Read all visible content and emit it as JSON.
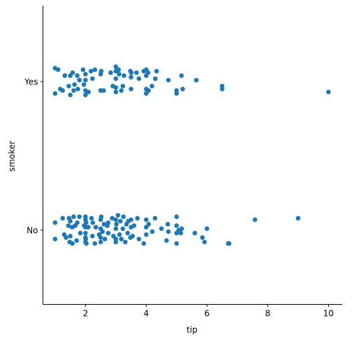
{
  "chart_data": {
    "type": "scatter",
    "title": "",
    "xlabel": "tip",
    "ylabel": "smoker",
    "categories": [
      "Yes",
      "No"
    ],
    "xlim": [
      0.6,
      10.45
    ],
    "xticks": [
      "2",
      "4",
      "6",
      "8",
      "10"
    ],
    "grid": false,
    "legend": "none",
    "color": "#1f77b4",
    "series": [
      {
        "category": "Yes",
        "points": [
          [
            1.0,
            0.09
          ],
          [
            1.0,
            -0.08
          ],
          [
            1.1,
            0.08
          ],
          [
            1.17,
            -0.05
          ],
          [
            1.25,
            -0.06
          ],
          [
            1.32,
            0.04
          ],
          [
            1.45,
            -0.03
          ],
          [
            1.5,
            -0.09
          ],
          [
            1.5,
            0.04
          ],
          [
            1.58,
            0.06
          ],
          [
            1.61,
            -0.06
          ],
          [
            1.64,
            -0.02
          ],
          [
            1.73,
            0.04
          ],
          [
            1.75,
            -0.05
          ],
          [
            1.8,
            0.01
          ],
          [
            1.92,
            0.08
          ],
          [
            1.95,
            -0.02
          ],
          [
            2.0,
            -0.06
          ],
          [
            2.0,
            0.01
          ],
          [
            2.0,
            0.05
          ],
          [
            2.0,
            -0.09
          ],
          [
            2.1,
            -0.07
          ],
          [
            2.18,
            0.07
          ],
          [
            2.23,
            0.02
          ],
          [
            2.31,
            0.08
          ],
          [
            2.5,
            -0.06
          ],
          [
            2.5,
            0.05
          ],
          [
            2.5,
            -0.06
          ],
          [
            2.52,
            0.07
          ],
          [
            2.6,
            -0.06
          ],
          [
            2.83,
            0.06
          ],
          [
            2.9,
            -0.03
          ],
          [
            3.0,
            0.07
          ],
          [
            3.0,
            -0.07
          ],
          [
            3.0,
            0.1
          ],
          [
            3.0,
            -0.04
          ],
          [
            3.0,
            0.02
          ],
          [
            3.09,
            0.08
          ],
          [
            3.11,
            0.05
          ],
          [
            3.18,
            -0.06
          ],
          [
            3.23,
            -0.03
          ],
          [
            3.27,
            0.04
          ],
          [
            3.48,
            0.07
          ],
          [
            3.5,
            0.03
          ],
          [
            3.5,
            -0.05
          ],
          [
            3.51,
            0.06
          ],
          [
            3.68,
            0.06
          ],
          [
            3.76,
            0.02
          ],
          [
            3.92,
            0.07
          ],
          [
            4.0,
            -0.05
          ],
          [
            4.0,
            0.08
          ],
          [
            4.0,
            0.04
          ],
          [
            4.0,
            -0.08
          ],
          [
            4.06,
            0.06
          ],
          [
            4.08,
            -0.06
          ],
          [
            4.19,
            -0.03
          ],
          [
            4.3,
            0.02
          ],
          [
            4.34,
            0.07
          ],
          [
            4.73,
            0.01
          ],
          [
            5.0,
            -0.06
          ],
          [
            5.0,
            -0.08
          ],
          [
            5.16,
            0.04
          ],
          [
            5.2,
            -0.05
          ],
          [
            5.65,
            0.01
          ],
          [
            6.5,
            -0.03
          ],
          [
            6.5,
            -0.05
          ],
          [
            10.0,
            -0.07
          ]
        ]
      },
      {
        "category": "No",
        "points": [
          [
            1.0,
            0.05
          ],
          [
            1.0,
            -0.06
          ],
          [
            1.25,
            0.08
          ],
          [
            1.3,
            -0.03
          ],
          [
            1.36,
            -0.05
          ],
          [
            1.44,
            0.03
          ],
          [
            1.46,
            0.08
          ],
          [
            1.48,
            -0.08
          ],
          [
            1.5,
            -0.04
          ],
          [
            1.5,
            0.06
          ],
          [
            1.56,
            0.02
          ],
          [
            1.57,
            -0.09
          ],
          [
            1.61,
            0.09
          ],
          [
            1.66,
            0.03
          ],
          [
            1.71,
            -0.07
          ],
          [
            1.73,
            0.05
          ],
          [
            1.8,
            0.09
          ],
          [
            1.83,
            -0.02
          ],
          [
            1.96,
            0.03
          ],
          [
            2.0,
            0.09
          ],
          [
            2.0,
            -0.05
          ],
          [
            2.0,
            0.02
          ],
          [
            2.0,
            -0.08
          ],
          [
            2.0,
            0.07
          ],
          [
            2.0,
            -0.02
          ],
          [
            2.01,
            -0.06
          ],
          [
            2.02,
            0.05
          ],
          [
            2.03,
            -0.09
          ],
          [
            2.09,
            0.02
          ],
          [
            2.2,
            0.08
          ],
          [
            2.23,
            -0.04
          ],
          [
            2.24,
            0.05
          ],
          [
            2.31,
            -0.09
          ],
          [
            2.34,
            0.02
          ],
          [
            2.45,
            -0.03
          ],
          [
            2.5,
            0.07
          ],
          [
            2.5,
            -0.08
          ],
          [
            2.5,
            0.01
          ],
          [
            2.5,
            -0.05
          ],
          [
            2.52,
            0.09
          ],
          [
            2.56,
            -0.01
          ],
          [
            2.61,
            0.04
          ],
          [
            2.64,
            -0.06
          ],
          [
            2.72,
            0.03
          ],
          [
            2.75,
            -0.02
          ],
          [
            2.75,
            0.05
          ],
          [
            2.88,
            0.08
          ],
          [
            2.92,
            -0.04
          ],
          [
            3.0,
            0.07
          ],
          [
            3.0,
            -0.06
          ],
          [
            3.0,
            0.01
          ],
          [
            3.0,
            -0.08
          ],
          [
            3.02,
            0.04
          ],
          [
            3.07,
            0.1
          ],
          [
            3.12,
            -0.03
          ],
          [
            3.15,
            0.06
          ],
          [
            3.18,
            -0.06
          ],
          [
            3.23,
            0.01
          ],
          [
            3.25,
            0.09
          ],
          [
            3.31,
            -0.08
          ],
          [
            3.35,
            0.04
          ],
          [
            3.39,
            -0.02
          ],
          [
            3.41,
            0.06
          ],
          [
            3.48,
            -0.05
          ],
          [
            3.5,
            0.07
          ],
          [
            3.5,
            0.02
          ],
          [
            3.55,
            -0.04
          ],
          [
            3.6,
            0.03
          ],
          [
            3.71,
            0.08
          ],
          [
            3.76,
            -0.06
          ],
          [
            3.92,
            -0.09
          ],
          [
            4.0,
            0.02
          ],
          [
            4.0,
            -0.03
          ],
          [
            4.0,
            0.07
          ],
          [
            4.08,
            0.04
          ],
          [
            4.2,
            -0.01
          ],
          [
            4.29,
            0.08
          ],
          [
            4.5,
            0.01
          ],
          [
            4.67,
            -0.07
          ],
          [
            4.71,
            0.04
          ],
          [
            4.73,
            -0.01
          ],
          [
            5.0,
            0.09
          ],
          [
            5.0,
            -0.02
          ],
          [
            5.0,
            0.03
          ],
          [
            5.0,
            -0.09
          ],
          [
            5.07,
            0.0
          ],
          [
            5.14,
            -0.02
          ],
          [
            5.17,
            0.01
          ],
          [
            5.6,
            -0.02
          ],
          [
            5.85,
            -0.05
          ],
          [
            5.92,
            -0.08
          ],
          [
            6.0,
            0.01
          ],
          [
            6.7,
            -0.09
          ],
          [
            6.73,
            -0.09
          ],
          [
            7.58,
            0.07
          ],
          [
            9.0,
            0.08
          ]
        ]
      }
    ]
  }
}
